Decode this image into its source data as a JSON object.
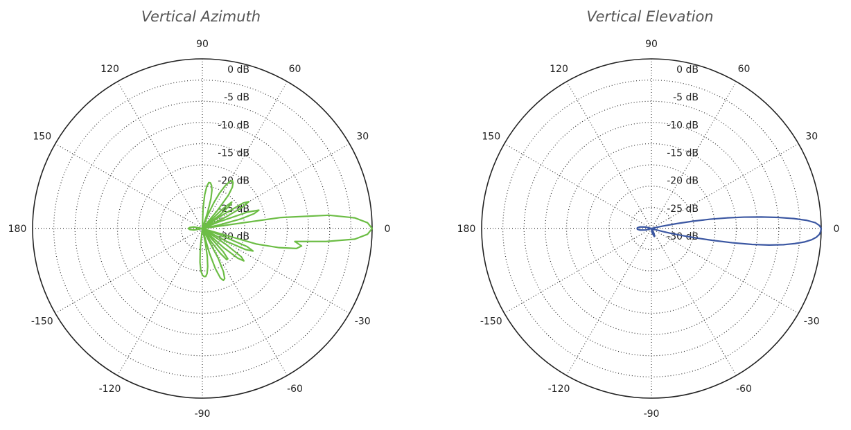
{
  "chart_data": [
    {
      "type": "polar",
      "title": "Vertical Azimuth",
      "color": "#6cbd45",
      "radial_range_db": [
        -30,
        0
      ],
      "radial_ticks": [
        "0 dB",
        "-5 dB",
        "-10 dB",
        "-15 dB",
        "-20 dB",
        "-25 dB",
        "-30 dB"
      ],
      "angular_ticks": [
        "0",
        "30",
        "60",
        "90",
        "120",
        "150",
        "180",
        "-150",
        "-120",
        "-90",
        "-60",
        "-30"
      ],
      "grid": true,
      "series": [
        {
          "angle_deg": [
            0,
            2,
            4,
            6,
            8,
            10,
            12,
            14,
            16,
            18,
            20,
            22,
            24,
            26,
            28,
            30,
            32,
            34,
            36,
            38,
            40,
            42,
            44,
            46,
            48,
            50,
            52,
            54,
            56,
            58,
            60,
            62,
            64,
            66,
            68,
            70,
            72,
            74,
            76,
            78,
            80,
            82,
            84,
            86,
            88,
            90,
            92,
            94,
            96,
            98,
            100,
            105,
            110,
            120,
            130,
            140,
            150,
            160,
            170,
            175,
            180,
            -175,
            -170,
            -160,
            -150,
            -140,
            -130,
            -120,
            -110,
            -105,
            -100,
            -98,
            -96,
            -94,
            -92,
            -90,
            -88,
            -86,
            -84,
            -82,
            -80,
            -78,
            -76,
            -74,
            -72,
            -70,
            -68,
            -66,
            -64,
            -62,
            -60,
            -58,
            -56,
            -54,
            -52,
            -50,
            -48,
            -46,
            -44,
            -42,
            -40,
            -38,
            -36,
            -34,
            -32,
            -30,
            -28,
            -26,
            -24,
            -22,
            -20,
            -18,
            -16,
            -14,
            -12,
            -10,
            -8,
            -6,
            -4,
            -2,
            0
          ],
          "gain_db": [
            0,
            -0.8,
            -3,
            -7.5,
            -16,
            -30,
            -27,
            -23,
            -20.5,
            -19.5,
            -21.5,
            -27,
            -30,
            -25.5,
            -22,
            -20.5,
            -21.5,
            -26,
            -30,
            -26,
            -23.5,
            -23,
            -25,
            -30,
            -30,
            -26,
            -22.5,
            -21,
            -20.3,
            -20,
            -20.5,
            -21.5,
            -23,
            -25,
            -27.5,
            -30,
            -27,
            -24.5,
            -23,
            -22.2,
            -21.8,
            -21.8,
            -22.5,
            -24,
            -26.5,
            -30,
            -30,
            -30,
            -30,
            -30,
            -30,
            -30,
            -30,
            -30,
            -30,
            -30,
            -30,
            -30,
            -28.5,
            -27.8,
            -27.5,
            -27.8,
            -28.5,
            -30,
            -30,
            -30,
            -30,
            -30,
            -30,
            -30,
            -30,
            -30,
            -26.5,
            -24,
            -22.5,
            -21.8,
            -21.5,
            -21.5,
            -22,
            -23.2,
            -25,
            -27.5,
            -30,
            -25.5,
            -22.5,
            -20.7,
            -20.1,
            -20.3,
            -21.5,
            -24,
            -30,
            -30,
            -27,
            -24.5,
            -23,
            -23,
            -24.5,
            -30,
            -30,
            -25,
            -21.8,
            -20.7,
            -21.5,
            -25,
            -30,
            -30,
            -25,
            -21.5,
            -20.2,
            -21.5,
            -27,
            -30,
            -20,
            -16,
            -13,
            -12.2,
            -13.5,
            -8,
            -3,
            -0.8,
            0
          ]
        }
      ]
    },
    {
      "type": "polar",
      "title": "Vertical Elevation",
      "color": "#3b57a2",
      "radial_range_db": [
        -30,
        0
      ],
      "radial_ticks": [
        "0 dB",
        "-5 dB",
        "-10 dB",
        "-15 dB",
        "-20 dB",
        "-25 dB",
        "-30 dB"
      ],
      "angular_ticks": [
        "0",
        "30",
        "60",
        "90",
        "120",
        "150",
        "180",
        "-150",
        "-120",
        "-90",
        "-60",
        "-30"
      ],
      "grid": true,
      "series": [
        {
          "angle_deg": [
            0,
            1,
            2,
            3,
            4,
            5,
            6,
            7,
            8,
            9,
            10,
            11,
            12,
            13,
            14,
            16,
            20,
            30,
            60,
            90,
            120,
            150,
            165,
            172,
            176,
            178,
            180,
            -178,
            -176,
            -172,
            -165,
            -150,
            -120,
            -90,
            -80,
            -70,
            -65,
            -60,
            -50,
            -40,
            -30,
            -20,
            -17,
            -15,
            -14,
            -13,
            -12,
            -11,
            -10,
            -9,
            -8,
            -7,
            -6,
            -5,
            -4,
            -3,
            -2,
            -1,
            0
          ],
          "gain_db": [
            0,
            -0.3,
            -1,
            -2.5,
            -4.8,
            -7.5,
            -10.5,
            -13.5,
            -16.5,
            -19.5,
            -22.5,
            -25.5,
            -28,
            -29.5,
            -30,
            -30,
            -30,
            -30,
            -30,
            -30,
            -30,
            -30,
            -29,
            -28,
            -27.6,
            -27.5,
            -27.5,
            -27.5,
            -27.6,
            -28,
            -29,
            -30,
            -30,
            -30,
            -29.2,
            -28.5,
            -28.8,
            -29.3,
            -30,
            -30,
            -30,
            -30,
            -29.5,
            -28,
            -26.5,
            -24.5,
            -22,
            -19,
            -15.5,
            -12,
            -9,
            -6.5,
            -4.5,
            -2.8,
            -1.6,
            -0.8,
            -0.3,
            -0.1,
            0
          ]
        }
      ]
    }
  ]
}
